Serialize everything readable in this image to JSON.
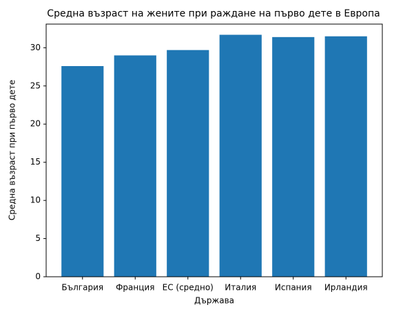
{
  "chart_data": {
    "type": "bar",
    "title": "Средна възраст на жените при раждане на първо дете в Европа",
    "xlabel": "Държава",
    "ylabel": "Средна възраст при първо дете",
    "categories": [
      "България",
      "Франция",
      "ЕС (средно)",
      "Италия",
      "Испания",
      "Ирландия"
    ],
    "values": [
      27.6,
      29.0,
      29.7,
      31.7,
      31.4,
      31.5
    ],
    "color": "#1f77b4",
    "ylim": [
      0,
      33.1
    ],
    "yticks": [
      0,
      5,
      10,
      15,
      20,
      25,
      30
    ],
    "grid": false
  }
}
